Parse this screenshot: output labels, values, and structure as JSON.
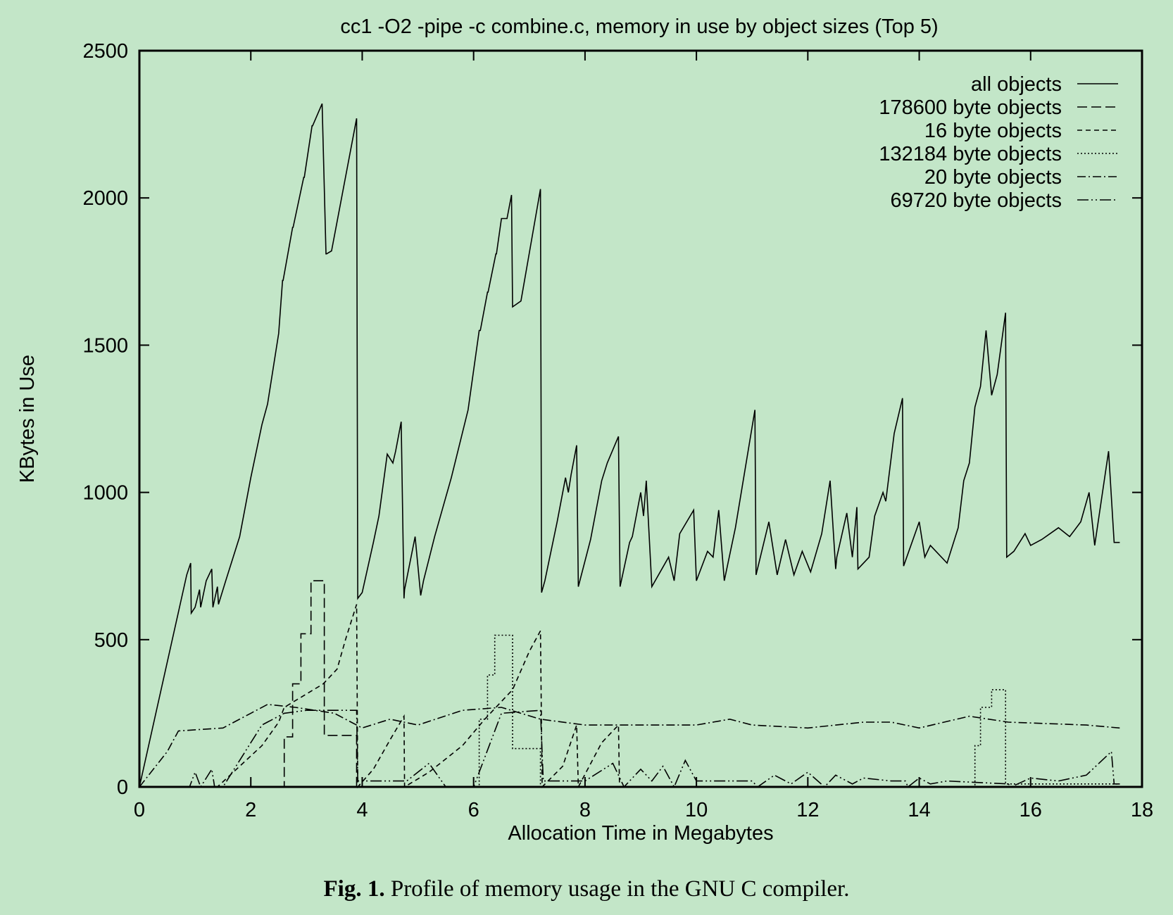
{
  "caption": {
    "label": "Fig. 1.",
    "text": "Profile of memory usage in the GNU C compiler."
  },
  "chart_data": {
    "type": "line",
    "title": "cc1 -O2 -pipe -c combine.c, memory in use by object sizes (Top 5)",
    "xlabel": "Allocation Time in Megabytes",
    "ylabel": "KBytes in Use",
    "xlim": [
      0,
      18
    ],
    "ylim": [
      0,
      2500
    ],
    "xticks": [
      0,
      2,
      4,
      6,
      8,
      10,
      12,
      14,
      16,
      18
    ],
    "yticks": [
      0,
      500,
      1000,
      1500,
      2000,
      2500
    ],
    "grid": false,
    "legend_position": "top-right",
    "background_color": "#c3e6c8",
    "line_color": "#000000",
    "series": [
      {
        "name": "all objects",
        "dash": "solid",
        "x": [
          0,
          0.85,
          0.92,
          0.93,
          1.0,
          1.08,
          1.1,
          1.2,
          1.3,
          1.32,
          1.4,
          1.42,
          1.55,
          1.8,
          2.0,
          2.2,
          2.3,
          2.5,
          2.57,
          2.58,
          2.75,
          2.76,
          2.95,
          2.96,
          3.1,
          3.11,
          3.28,
          3.35,
          3.36,
          3.45,
          3.9,
          3.92,
          4.0,
          4.2,
          4.3,
          4.45,
          4.55,
          4.6,
          4.7,
          4.75,
          4.76,
          4.95,
          5.05,
          5.1,
          5.3,
          5.6,
          5.9,
          6.1,
          6.12,
          6.25,
          6.26,
          6.4,
          6.41,
          6.5,
          6.6,
          6.68,
          6.7,
          6.85,
          7.2,
          7.22,
          7.28,
          7.5,
          7.65,
          7.7,
          7.75,
          7.85,
          7.88,
          8.1,
          8.3,
          8.4,
          8.6,
          8.63,
          8.8,
          8.85,
          9.0,
          9.05,
          9.1,
          9.2,
          9.5,
          9.6,
          9.7,
          9.95,
          10.0,
          10.2,
          10.3,
          10.4,
          10.5,
          10.7,
          11.05,
          11.07,
          11.3,
          11.45,
          11.6,
          11.75,
          11.9,
          12.05,
          12.25,
          12.4,
          12.5,
          12.52,
          12.7,
          12.8,
          12.88,
          12.9,
          13.1,
          13.2,
          13.35,
          13.4,
          13.55,
          13.7,
          13.72,
          14.0,
          14.1,
          14.2,
          14.5,
          14.7,
          14.8,
          14.9,
          15.0,
          15.1,
          15.2,
          15.3,
          15.4,
          15.55,
          15.57,
          15.7,
          15.9,
          16.0,
          16.2,
          16.5,
          16.7,
          16.9,
          17.05,
          17.15,
          17.4,
          17.5,
          17.6
        ],
        "y": [
          0,
          720,
          760,
          590,
          610,
          670,
          610,
          700,
          740,
          610,
          680,
          620,
          700,
          850,
          1050,
          1230,
          1300,
          1540,
          1720,
          1720,
          1900,
          1900,
          2070,
          2070,
          2245,
          2245,
          2320,
          1810,
          1810,
          1820,
          2270,
          640,
          660,
          830,
          920,
          1130,
          1100,
          1140,
          1240,
          640,
          670,
          850,
          650,
          700,
          850,
          1050,
          1280,
          1550,
          1550,
          1680,
          1680,
          1810,
          1810,
          1930,
          1930,
          2010,
          1630,
          1650,
          2030,
          660,
          700,
          900,
          1050,
          1000,
          1060,
          1160,
          680,
          840,
          1040,
          1100,
          1190,
          680,
          830,
          850,
          1000,
          920,
          1040,
          680,
          780,
          700,
          860,
          940,
          700,
          800,
          780,
          940,
          700,
          880,
          1280,
          720,
          900,
          720,
          840,
          720,
          800,
          730,
          860,
          1040,
          740,
          780,
          930,
          780,
          950,
          740,
          780,
          920,
          1000,
          970,
          1200,
          1320,
          750,
          900,
          780,
          820,
          760,
          880,
          1040,
          1100,
          1290,
          1360,
          1550,
          1330,
          1400,
          1610,
          780,
          800,
          860,
          820,
          840,
          880,
          850,
          900,
          1000,
          820,
          1140,
          830,
          830
        ]
      },
      {
        "name": "178600 byte objects",
        "dash": "14,6",
        "x": [
          0,
          2.55,
          2.6,
          2.6,
          2.75,
          2.75,
          2.9,
          2.9,
          3.08,
          3.08,
          3.32,
          3.32,
          3.9,
          3.9,
          6.1
        ],
        "y": [
          0,
          0,
          0,
          170,
          170,
          350,
          350,
          520,
          520,
          700,
          700,
          175,
          175,
          0,
          0
        ]
      },
      {
        "name": "16 byte objects",
        "dash": "7,5",
        "x": [
          0,
          1.4,
          2.2,
          2.5,
          2.6,
          3.3,
          3.55,
          3.7,
          3.9,
          3.92,
          4.2,
          4.5,
          4.75,
          4.76,
          5.2,
          5.8,
          6.2,
          6.7,
          7.0,
          7.2,
          7.23,
          7.6,
          7.85,
          7.88,
          8.3,
          8.6,
          8.62
        ],
        "y": [
          0,
          0,
          140,
          220,
          270,
          350,
          400,
          500,
          620,
          0,
          60,
          160,
          240,
          0,
          50,
          140,
          230,
          330,
          460,
          530,
          0,
          70,
          210,
          0,
          150,
          210,
          0
        ]
      },
      {
        "name": "132184 byte objects",
        "dash": "2,3",
        "x": [
          0,
          6.1,
          6.1,
          6.25,
          6.25,
          6.38,
          6.38,
          6.5,
          6.5,
          6.7,
          6.7,
          7.2,
          7.2,
          15.0,
          15.0,
          15.1,
          15.1,
          15.3,
          15.3,
          15.55,
          15.55,
          17.6
        ],
        "y": [
          0,
          0,
          230,
          230,
          380,
          380,
          515,
          515,
          515,
          515,
          130,
          130,
          0,
          0,
          140,
          140,
          270,
          270,
          330,
          330,
          10,
          10
        ]
      },
      {
        "name": "20 byte objects",
        "dash": "12,4,2,4",
        "x": [
          0,
          0.5,
          0.7,
          1.5,
          2.0,
          2.3,
          2.8,
          3.5,
          4.0,
          4.5,
          5.0,
          5.8,
          6.5,
          7.2,
          8.0,
          9.0,
          10.0,
          10.6,
          11.0,
          12.0,
          13.0,
          13.5,
          14.0,
          14.9,
          15.6,
          17.0,
          17.6
        ],
        "y": [
          0,
          120,
          190,
          200,
          250,
          280,
          270,
          250,
          200,
          230,
          210,
          260,
          270,
          230,
          210,
          210,
          210,
          230,
          210,
          200,
          220,
          220,
          200,
          240,
          220,
          210,
          200
        ]
      },
      {
        "name": "69720 byte objects",
        "dash": "16,4,2,4,2,4",
        "x": [
          0,
          0.9,
          1.0,
          1.1,
          1.3,
          1.35,
          1.5,
          2.2,
          2.6,
          3.0,
          3.5,
          3.9,
          3.92,
          4.8,
          5.2,
          5.5,
          6.0,
          6.5,
          7.2,
          7.25,
          8.0,
          8.5,
          8.7,
          9.0,
          9.2,
          9.4,
          9.6,
          9.8,
          10.0,
          11.0,
          11.1,
          11.4,
          11.7,
          12.0,
          12.3,
          12.5,
          12.8,
          13.0,
          13.5,
          13.75,
          13.8,
          14.0,
          14.2,
          14.5,
          15.6,
          15.65,
          16.0,
          16.5,
          17.0,
          17.45,
          17.5,
          17.6
        ],
        "y": [
          0,
          0,
          50,
          0,
          60,
          0,
          0,
          210,
          250,
          260,
          260,
          260,
          20,
          20,
          80,
          0,
          0,
          250,
          260,
          20,
          20,
          80,
          0,
          60,
          20,
          70,
          0,
          90,
          20,
          20,
          0,
          40,
          10,
          50,
          0,
          40,
          10,
          30,
          20,
          20,
          0,
          30,
          10,
          20,
          10,
          0,
          30,
          20,
          40,
          120,
          10,
          10
        ]
      }
    ]
  }
}
